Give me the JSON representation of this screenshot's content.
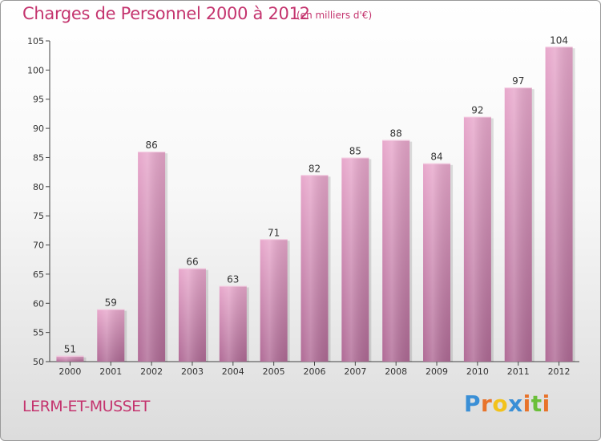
{
  "header": {
    "title": "Charges de Personnel 2000 à 2012",
    "subtitle": "(en milliers d'€)"
  },
  "footer": {
    "commune": "LERM-ET-MUSSET",
    "logo_letters": [
      "P",
      "r",
      "o",
      "x",
      "i",
      "t",
      "i"
    ],
    "logo_colors": [
      "#3a8fd6",
      "#e8732a",
      "#f2c21b",
      "#3a8fd6",
      "#e8732a",
      "#6bbf3a",
      "#e8732a"
    ]
  },
  "colors": {
    "title": "#c4346e",
    "bar_top": "#e8a8cc",
    "bar_bottom": "#b06b96",
    "axis": "#444444",
    "grid": "#dddddd"
  },
  "chart_data": {
    "type": "bar",
    "categories": [
      "2000",
      "2001",
      "2002",
      "2003",
      "2004",
      "2005",
      "2006",
      "2007",
      "2008",
      "2009",
      "2010",
      "2011",
      "2012"
    ],
    "values": [
      51,
      59,
      86,
      66,
      63,
      71,
      82,
      85,
      88,
      84,
      92,
      97,
      104
    ],
    "ylim": [
      50,
      105
    ],
    "yticks": [
      50,
      55,
      60,
      65,
      70,
      75,
      80,
      85,
      90,
      95,
      100,
      105
    ],
    "grid": false
  }
}
